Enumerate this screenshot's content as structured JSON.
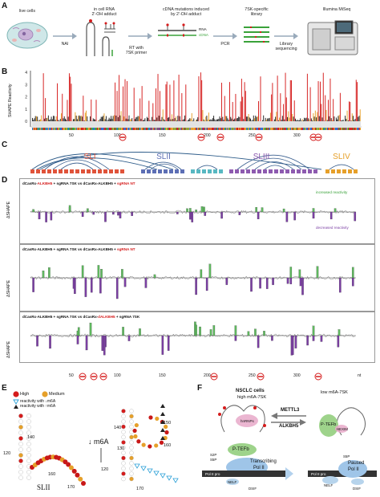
{
  "panels": {
    "a": "A",
    "b": "B",
    "c": "C",
    "d": "D",
    "e": "E",
    "f": "F"
  },
  "panel_a": {
    "live_cells": "live cells",
    "nai": "NAI",
    "in_cell_rna": "in cell RNA",
    "adduct": "2'-OH adduct",
    "rt_primer": "RT with",
    "rt_primer2": "7SK primer",
    "cdna_mut": "cDNA mutations induced",
    "cdna_mut2": "by 2'-OH adduct",
    "rna": "RNA",
    "cdna": "cDNA",
    "pcr": "PCR",
    "lib": "7SK-specific",
    "lib2": "library",
    "seq": "Library",
    "seq2": "sequencing",
    "miseq": "Illumina MiSeq",
    "colors": {
      "red": "#d51c1c",
      "green": "#3aa23a",
      "gray": "#555555"
    }
  },
  "panel_b": {
    "ylabel": "SHAPE Reactivity",
    "yticks": [
      "4",
      "3",
      "2",
      "1",
      "0"
    ],
    "xticks": [
      "50",
      "100",
      "150",
      "200",
      "250",
      "300"
    ],
    "m6a_sites": [
      "m6A",
      "m6A",
      "m6A",
      "m6A",
      "m6A",
      "m6A"
    ]
  },
  "panel_c": {
    "domains": [
      {
        "name": "SLI",
        "color": "#e0533a"
      },
      {
        "name": "SLII",
        "color": "#5d6fb5"
      },
      {
        "name": "SLIII",
        "color": "#8e5bb0"
      },
      {
        "name": "SLIV",
        "color": "#e6a02a"
      }
    ]
  },
  "panel_d": {
    "ylabel": "ΔSHAPE",
    "rows": [
      {
        "a": "dCasRx-",
        "b": "ALKBH5",
        "c": " + sgRNA 7SK vs dCasRx-ALKBH5 + ",
        "d": "sgRNA NT",
        "color_b": "#d51c1c",
        "color_d": "#d51c1c"
      },
      {
        "a": "dCasRx-ALKBH5 + sgRNA 7SK vs dCasRx-ALKBH5 + ",
        "b": "",
        "c": "",
        "d": "sgRNA NT",
        "color_b": "#111",
        "color_d": "#d51c1c"
      },
      {
        "a": "dCasRx-ALKBH5 + sgRNA 7SK vs dCasRx-",
        "b": "dALKBH5",
        "c": " + sgRNA 7SK",
        "d": "",
        "color_b": "#d51c1c",
        "color_d": "#111"
      }
    ],
    "increased": "increased reactivity",
    "decreased": "decreased reactivity",
    "xticks": [
      "50",
      "100",
      "150",
      "200",
      "250",
      "300"
    ],
    "nt": "nt",
    "m6a_sites": [
      "m6A",
      "m6A",
      "m6A",
      "m6A",
      "m6A",
      "m6A"
    ]
  },
  "panel_e": {
    "legend_high": "High",
    "legend_medium": "Medium",
    "legend_dec": "reactivity with ↓m6A",
    "legend_inc": "reactivity with ↑m6A",
    "down_m6a": "↓ m6A",
    "sl_label": "SLII",
    "nums": [
      "140",
      "120",
      "160",
      "170",
      "150",
      "140",
      "130",
      "120",
      "160",
      "170"
    ]
  },
  "panel_f": {
    "nsclc": "NSCLC cells",
    "high": "high m6A-7SK",
    "low": "low m6A-7SK",
    "mettl3": "METTL3",
    "alkbh5": "ALKBH5",
    "ptefb": "P-TEFb",
    "hnrnps": "hnRNPs",
    "hexim": "HEXIM",
    "s2p": "S2P",
    "s5p": "S5P",
    "transcribing": "Transcribing",
    "paused": "Paused",
    "pol2": "Pol II",
    "pol2pro": "Pol II pro",
    "nelf": "NELF",
    "dsif": "DSIF"
  }
}
